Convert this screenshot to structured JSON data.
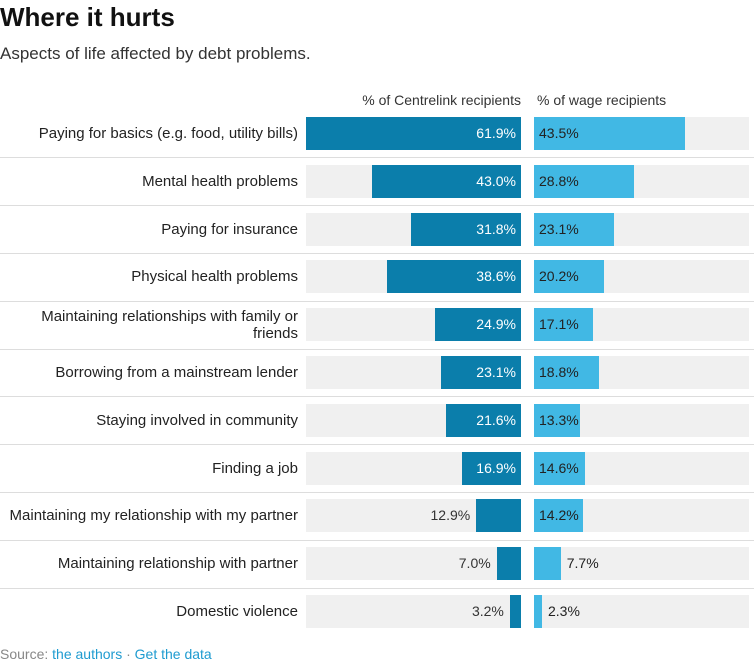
{
  "chart_data": {
    "type": "split-bar",
    "title": "Where it hurts",
    "subtitle": "Aspects of life affected by debt problems.",
    "categories": [
      "Paying for basics (e.g. food, utility bills)",
      "Mental health problems",
      "Paying for insurance",
      "Physical health problems",
      "Maintaining relationships with family or friends",
      "Borrowing from a mainstream lender",
      "Staying involved in community",
      "Finding a job",
      "Maintaining my relationship with my partner",
      "Maintaining relationship with partner",
      "Domestic violence"
    ],
    "series": [
      {
        "name": "% of Centrelink recipients",
        "color": "#0b7eab",
        "values": [
          61.9,
          43.0,
          31.8,
          38.6,
          24.9,
          23.1,
          21.6,
          16.9,
          12.9,
          7.0,
          3.2
        ],
        "value_labels": [
          "61.9%",
          "43.0%",
          "31.8%",
          "38.6%",
          "24.9%",
          "23.1%",
          "21.6%",
          "16.9%",
          "12.9%",
          "7.0%",
          "3.2%"
        ]
      },
      {
        "name": "% of wage recipients",
        "color": "#41b8e4",
        "values": [
          43.5,
          28.8,
          23.1,
          20.2,
          17.1,
          18.8,
          13.3,
          14.6,
          14.2,
          7.7,
          2.3
        ],
        "value_labels": [
          "43.5%",
          "28.8%",
          "23.1%",
          "20.2%",
          "17.1%",
          "18.8%",
          "13.3%",
          "14.6%",
          "14.2%",
          "7.7%",
          "2.3%"
        ]
      }
    ],
    "xlim": [
      0,
      61.9
    ],
    "source_label": "Source:",
    "source": "the authors",
    "data_link": "Get the data"
  }
}
